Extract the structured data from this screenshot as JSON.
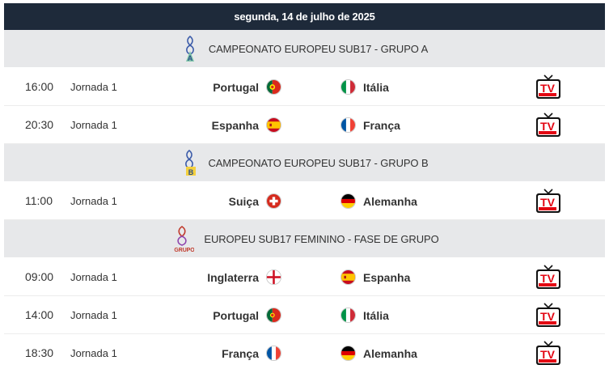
{
  "date_header": "segunda, 14 de julho de 2025",
  "colors": {
    "date_bar_bg": "#1e2a3a",
    "group_header_bg": "#e7e8ea",
    "tv_red": "#e30613"
  },
  "groups": [
    {
      "title": "CAMPEONATO EUROPEU SUB17 - GRUPO A",
      "logo_icon": "euro-u17-group-a-logo-icon",
      "matches": [
        {
          "time": "16:00",
          "round": "Jornada 1",
          "home": "Portugal",
          "home_flag": "portugal-flag-icon",
          "away": "Itália",
          "away_flag": "italy-flag-icon",
          "tv_icon": "tv-live-icon"
        },
        {
          "time": "20:30",
          "round": "Jornada 1",
          "home": "Espanha",
          "home_flag": "spain-flag-icon",
          "away": "França",
          "away_flag": "france-flag-icon",
          "tv_icon": "tv-live-icon"
        }
      ]
    },
    {
      "title": "CAMPEONATO EUROPEU SUB17 - GRUPO B",
      "logo_icon": "euro-u17-group-b-logo-icon",
      "matches": [
        {
          "time": "11:00",
          "round": "Jornada 1",
          "home": "Suiça",
          "home_flag": "switzerland-flag-icon",
          "away": "Alemanha",
          "away_flag": "germany-flag-icon",
          "tv_icon": "tv-live-icon"
        }
      ]
    },
    {
      "title": "EUROPEU SUB17 FEMININO - FASE DE GRUPO",
      "logo_icon": "women-euro-u17-group-logo-icon",
      "matches": [
        {
          "time": "09:00",
          "round": "Jornada 1",
          "home": "Inglaterra",
          "home_flag": "england-flag-icon",
          "away": "Espanha",
          "away_flag": "spain-flag-icon",
          "tv_icon": "tv-live-icon"
        },
        {
          "time": "14:00",
          "round": "Jornada 1",
          "home": "Portugal",
          "home_flag": "portugal-flag-icon",
          "away": "Itália",
          "away_flag": "italy-flag-icon",
          "tv_icon": "tv-live-icon"
        },
        {
          "time": "18:30",
          "round": "Jornada 1",
          "home": "França",
          "home_flag": "france-flag-icon",
          "away": "Alemanha",
          "away_flag": "germany-flag-icon",
          "tv_icon": "tv-live-icon"
        }
      ]
    }
  ]
}
